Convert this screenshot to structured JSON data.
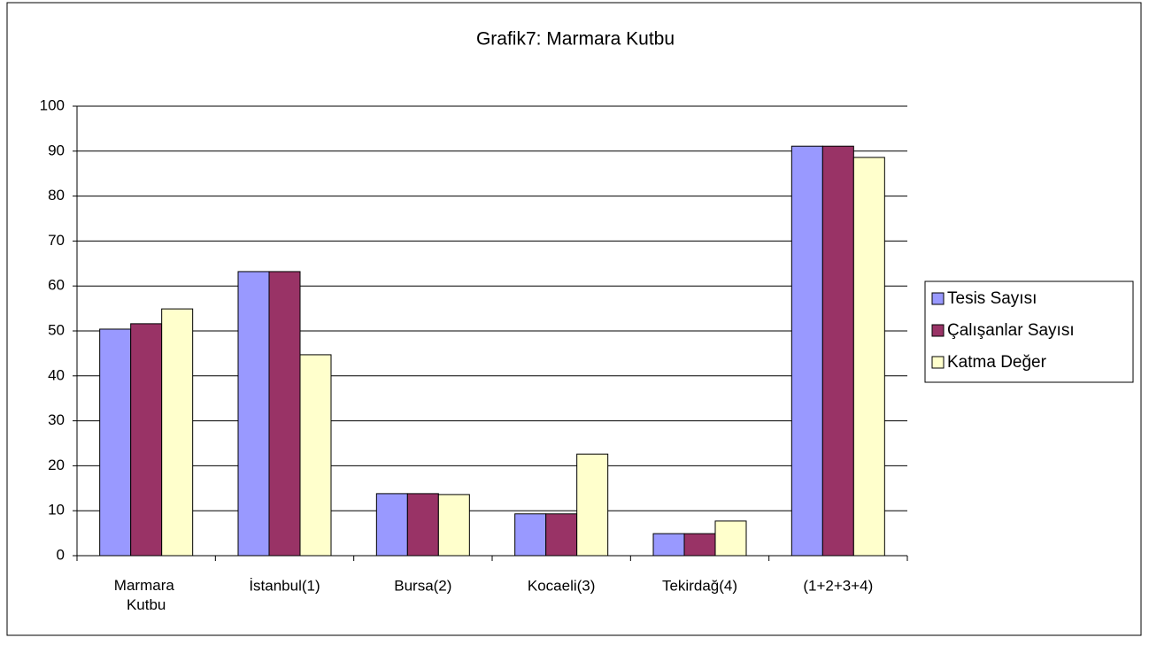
{
  "chart_data": {
    "type": "bar",
    "title": "Grafik7: Marmara Kutbu",
    "categories": [
      "Marmara Kutbu",
      "İstanbul(1)",
      "Bursa(2)",
      "Kocaeli(3)",
      "Tekirdağ(4)",
      "(1+2+3+4)"
    ],
    "series": [
      {
        "name": "Tesis Sayısı",
        "color": "#9999ff",
        "values": [
          50.4,
          63.2,
          13.8,
          9.3,
          4.9,
          91.1
        ]
      },
      {
        "name": "Çalışanlar Sayısı",
        "color": "#993366",
        "values": [
          51.6,
          63.2,
          13.8,
          9.3,
          4.9,
          91.1
        ]
      },
      {
        "name": "Katma Değer",
        "color": "#ffffcc",
        "values": [
          54.9,
          44.7,
          13.6,
          22.6,
          7.7,
          88.6
        ]
      }
    ],
    "ylim": [
      0,
      100
    ],
    "yticks": [
      0,
      10,
      20,
      30,
      40,
      50,
      60,
      70,
      80,
      90,
      100
    ],
    "grid": true,
    "legend": "right"
  }
}
